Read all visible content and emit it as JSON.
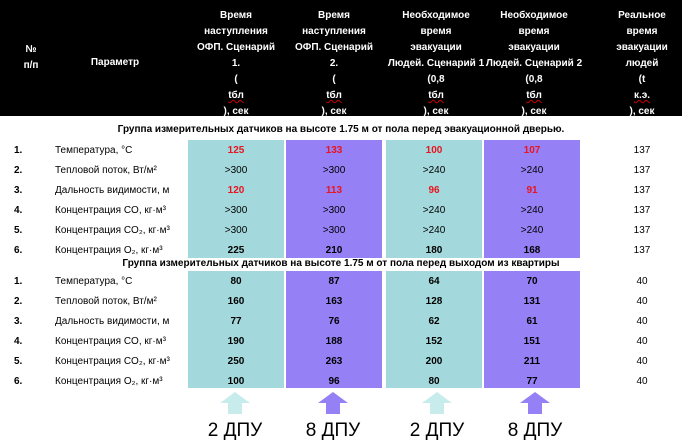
{
  "header": {
    "num": [
      "№",
      "п/п"
    ],
    "param": "Параметр",
    "s1": [
      "Время",
      "наступления",
      "ОФП. Сценарий",
      "1.",
      "(tбл), сек"
    ],
    "s2": [
      "Время",
      "наступления",
      "ОФП. Сценарий",
      "2.",
      "(tбл), сек"
    ],
    "n1": [
      "Необходимое",
      "время",
      "эвакуации",
      "Людей. Сценарий 1",
      "(0,8tбл), сек"
    ],
    "n2": [
      "Необходимое",
      "время",
      "эвакуации",
      "Людей. Сценарий 2",
      "(0,8tбл), сек"
    ],
    "real": [
      "Реальное",
      "время",
      "эвакуации",
      "людей",
      "(t к.э.), сек"
    ]
  },
  "groups": [
    {
      "title": "Группа измерительных датчиков на высоте 1.75 м от пола перед эвакуационной дверью.",
      "rows": [
        {
          "n": "1.",
          "p": "Температура, °С",
          "v": [
            "125",
            "133",
            "100",
            "107"
          ],
          "r": "137",
          "style": "red"
        },
        {
          "n": "2.",
          "p": "Тепловой поток, Вт/м²",
          "v": [
            ">300",
            ">300",
            ">240",
            ">240"
          ],
          "r": "137",
          "style": "plain"
        },
        {
          "n": "3.",
          "p": "Дальность видимости, м",
          "v": [
            "120",
            "113",
            "96",
            "91"
          ],
          "r": "137",
          "style": "red"
        },
        {
          "n": "4.",
          "p": "Концентрация CO, кг·м³",
          "v": [
            ">300",
            ">300",
            ">240",
            ">240"
          ],
          "r": "137",
          "style": "plain"
        },
        {
          "n": "5.",
          "p": "Концентрация CO₂, кг·м³",
          "v": [
            ">300",
            ">300",
            ">240",
            ">240"
          ],
          "r": "137",
          "style": "plain"
        },
        {
          "n": "6.",
          "p": "Концентрация O₂, кг·м³",
          "v": [
            "225",
            "210",
            "180",
            "168"
          ],
          "r": "137",
          "style": "bold"
        }
      ]
    },
    {
      "title": "Группа измерительных датчиков на высоте 1.75 м от пола перед выходом из квартиры",
      "rows": [
        {
          "n": "1.",
          "p": "Температура, °С",
          "v": [
            "80",
            "87",
            "64",
            "70"
          ],
          "r": "40",
          "style": "bold"
        },
        {
          "n": "2.",
          "p": "Тепловой поток, Вт/м²",
          "v": [
            "160",
            "163",
            "128",
            "131"
          ],
          "r": "40",
          "style": "bold"
        },
        {
          "n": "3.",
          "p": "Дальность видимости, м",
          "v": [
            "77",
            "76",
            "62",
            "61"
          ],
          "r": "40",
          "style": "bold"
        },
        {
          "n": "4.",
          "p": "Концентрация CO, кг·м³",
          "v": [
            "190",
            "188",
            "152",
            "151"
          ],
          "r": "40",
          "style": "bold"
        },
        {
          "n": "5.",
          "p": "Концентрация CO₂, кг·м³",
          "v": [
            "250",
            "263",
            "200",
            "211"
          ],
          "r": "40",
          "style": "bold"
        },
        {
          "n": "6.",
          "p": "Концентрация O₂, кг·м³",
          "v": [
            "100",
            "96",
            "80",
            "77"
          ],
          "r": "40",
          "style": "bold"
        }
      ]
    }
  ],
  "footer": {
    "labels": [
      "2 ДПУ",
      "8 ДПУ",
      "2 ДПУ",
      "8 ДПУ"
    ]
  },
  "colors": {
    "cyan": "#a3d9dc",
    "violet": "#9680f5",
    "red": "#e8141e"
  }
}
